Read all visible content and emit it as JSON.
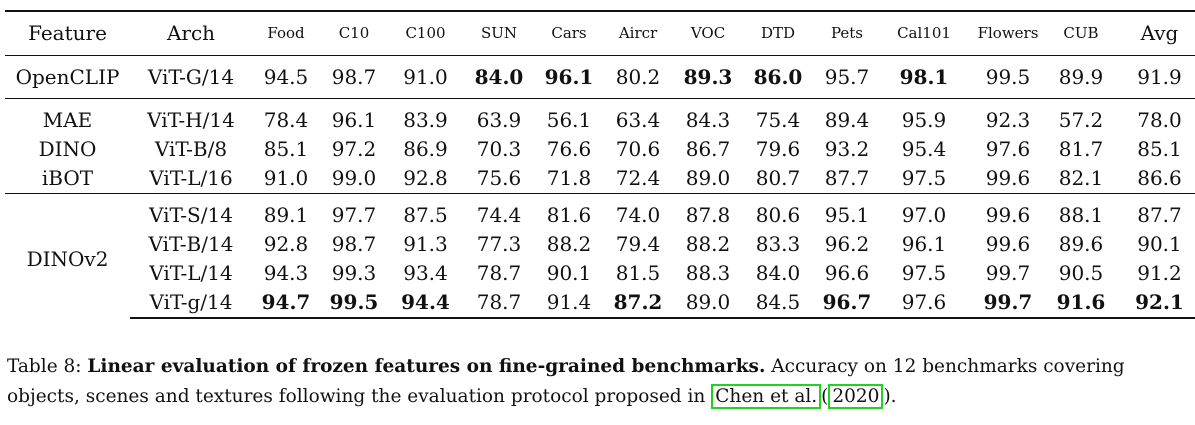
{
  "table": {
    "headers": [
      "Feature",
      "Arch",
      "Food",
      "C10",
      "C100",
      "SUN",
      "Cars",
      "Aircr",
      "VOC",
      "DTD",
      "Pets",
      "Cal101",
      "Flowers",
      "CUB",
      "Avg"
    ],
    "groups": [
      {
        "rows": [
          {
            "feature": "OpenCLIP",
            "arch": "ViT-G/14",
            "values": [
              "94.5",
              "98.7",
              "91.0",
              "84.0",
              "96.1",
              "80.2",
              "89.3",
              "86.0",
              "95.7",
              "98.1",
              "99.5",
              "89.9",
              "91.9"
            ],
            "bold": [
              false,
              false,
              false,
              true,
              true,
              false,
              true,
              true,
              false,
              true,
              false,
              false,
              false
            ]
          }
        ]
      },
      {
        "rows": [
          {
            "feature": "MAE",
            "arch": "ViT-H/14",
            "values": [
              "78.4",
              "96.1",
              "83.9",
              "63.9",
              "56.1",
              "63.4",
              "84.3",
              "75.4",
              "89.4",
              "95.9",
              "92.3",
              "57.2",
              "78.0"
            ],
            "bold": [
              false,
              false,
              false,
              false,
              false,
              false,
              false,
              false,
              false,
              false,
              false,
              false,
              false
            ]
          },
          {
            "feature": "DINO",
            "arch": "ViT-B/8",
            "values": [
              "85.1",
              "97.2",
              "86.9",
              "70.3",
              "76.6",
              "70.6",
              "86.7",
              "79.6",
              "93.2",
              "95.4",
              "97.6",
              "81.7",
              "85.1"
            ],
            "bold": [
              false,
              false,
              false,
              false,
              false,
              false,
              false,
              false,
              false,
              false,
              false,
              false,
              false
            ]
          },
          {
            "feature": "iBOT",
            "arch": "ViT-L/16",
            "values": [
              "91.0",
              "99.0",
              "92.8",
              "75.6",
              "71.8",
              "72.4",
              "89.0",
              "80.7",
              "87.7",
              "97.5",
              "99.6",
              "82.1",
              "86.6"
            ],
            "bold": [
              false,
              false,
              false,
              false,
              false,
              false,
              false,
              false,
              false,
              false,
              false,
              false,
              false
            ]
          }
        ]
      },
      {
        "feature": "DINOv2",
        "rows": [
          {
            "arch": "ViT-S/14",
            "values": [
              "89.1",
              "97.7",
              "87.5",
              "74.4",
              "81.6",
              "74.0",
              "87.8",
              "80.6",
              "95.1",
              "97.0",
              "99.6",
              "88.1",
              "87.7"
            ],
            "bold": [
              false,
              false,
              false,
              false,
              false,
              false,
              false,
              false,
              false,
              false,
              false,
              false,
              false
            ]
          },
          {
            "arch": "ViT-B/14",
            "values": [
              "92.8",
              "98.7",
              "91.3",
              "77.3",
              "88.2",
              "79.4",
              "88.2",
              "83.3",
              "96.2",
              "96.1",
              "99.6",
              "89.6",
              "90.1"
            ],
            "bold": [
              false,
              false,
              false,
              false,
              false,
              false,
              false,
              false,
              false,
              false,
              false,
              false,
              false
            ]
          },
          {
            "arch": "ViT-L/14",
            "values": [
              "94.3",
              "99.3",
              "93.4",
              "78.7",
              "90.1",
              "81.5",
              "88.3",
              "84.0",
              "96.6",
              "97.5",
              "99.7",
              "90.5",
              "91.2"
            ],
            "bold": [
              false,
              false,
              false,
              false,
              false,
              false,
              false,
              false,
              false,
              false,
              false,
              false,
              false
            ]
          },
          {
            "arch": "ViT-g/14",
            "values": [
              "94.7",
              "99.5",
              "94.4",
              "78.7",
              "91.4",
              "87.2",
              "89.0",
              "84.5",
              "96.7",
              "97.6",
              "99.7",
              "91.6",
              "92.1"
            ],
            "bold": [
              true,
              true,
              true,
              false,
              false,
              true,
              false,
              false,
              true,
              false,
              true,
              true,
              true
            ]
          }
        ]
      }
    ]
  },
  "caption": {
    "label": "Table 8:",
    "title": "Linear evaluation of frozen features on fine-grained benchmarks.",
    "text": "Accuracy on 12 benchmarks covering objects, scenes and textures following the evaluation protocol proposed in",
    "cite_author": "Chen et al.",
    "cite_open": "(",
    "cite_year": "2020",
    "cite_close": ")."
  },
  "colors": {
    "citation_box": "#21d321"
  }
}
